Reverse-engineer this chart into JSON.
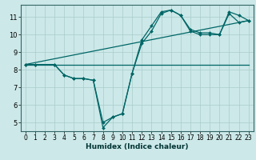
{
  "title": "",
  "xlabel": "Humidex (Indice chaleur)",
  "bg_color": "#cce8e8",
  "grid_color": "#aacccc",
  "line_color": "#006666",
  "xlim": [
    -0.5,
    23.5
  ],
  "ylim": [
    4.5,
    11.7
  ],
  "xticks": [
    0,
    1,
    2,
    3,
    4,
    5,
    6,
    7,
    8,
    9,
    10,
    11,
    12,
    13,
    14,
    15,
    16,
    17,
    18,
    19,
    20,
    21,
    22,
    23
  ],
  "yticks": [
    5,
    6,
    7,
    8,
    9,
    10,
    11
  ],
  "series_flat": {
    "x": [
      0,
      23
    ],
    "y": [
      8.3,
      8.3
    ]
  },
  "series_trend": {
    "x": [
      0,
      23
    ],
    "y": [
      8.3,
      10.8
    ]
  },
  "series_line1": {
    "x": [
      0,
      1,
      3,
      4,
      5,
      6,
      7,
      8,
      9,
      10,
      11,
      12,
      13,
      14,
      15,
      16,
      17,
      18,
      19,
      20,
      21,
      22,
      23
    ],
    "y": [
      8.3,
      8.3,
      8.3,
      7.7,
      7.5,
      7.5,
      7.4,
      5.0,
      5.3,
      5.5,
      7.8,
      9.7,
      10.5,
      11.3,
      11.4,
      11.1,
      10.3,
      10.1,
      10.1,
      10.0,
      11.3,
      11.1,
      10.8
    ]
  },
  "series_line2": {
    "x": [
      0,
      1,
      3,
      4,
      5,
      6,
      7,
      8,
      9,
      10,
      11,
      12,
      13,
      14,
      15,
      16,
      17,
      18,
      19,
      20,
      21,
      22,
      23
    ],
    "y": [
      8.3,
      8.3,
      8.3,
      7.7,
      7.5,
      7.5,
      7.4,
      4.7,
      5.3,
      5.5,
      7.8,
      9.5,
      10.2,
      11.2,
      11.4,
      11.1,
      10.2,
      10.0,
      10.0,
      10.0,
      11.2,
      10.7,
      10.8
    ]
  },
  "tick_fontsize": 5.5,
  "xlabel_fontsize": 6.5,
  "spine_color": "#336666",
  "marker_size": 2.0,
  "linewidth": 0.9
}
